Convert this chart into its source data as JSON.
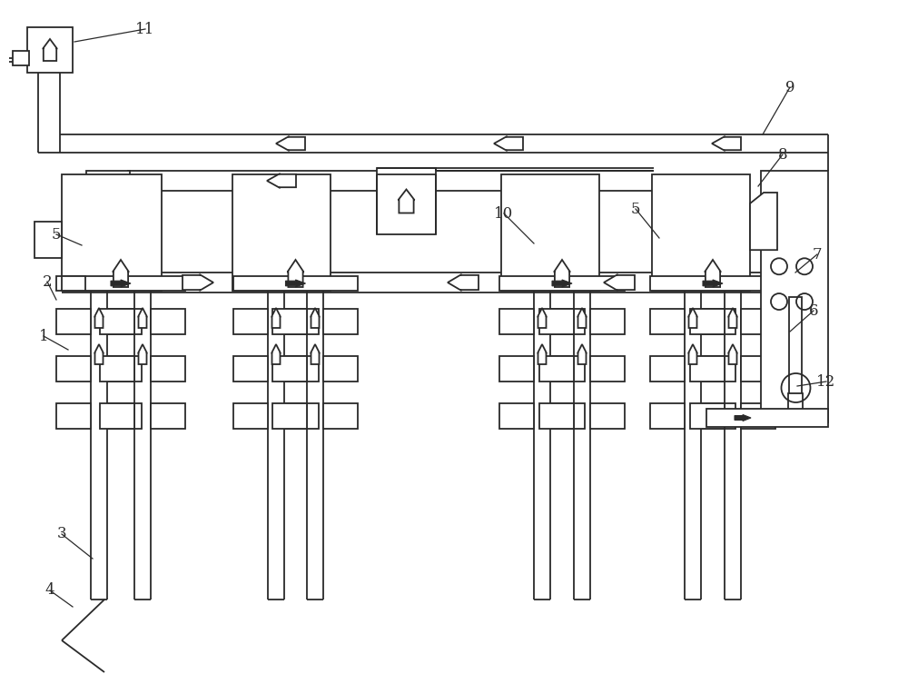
{
  "bg_color": "#ffffff",
  "lc": "#2a2a2a",
  "lw": 1.3,
  "fig_width": 10.0,
  "fig_height": 7.42
}
